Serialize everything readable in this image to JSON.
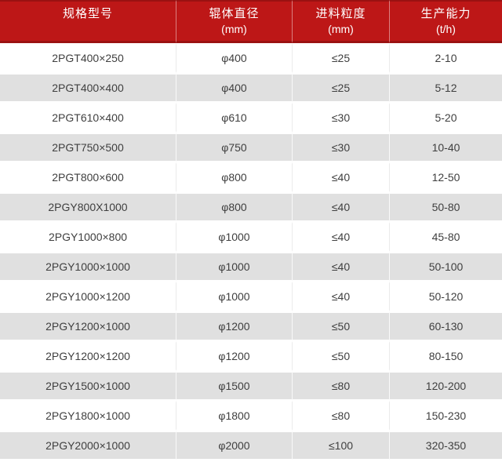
{
  "colors": {
    "header_bg": "#bd1717",
    "header_border": "#9a1111",
    "header_text": "#ffffff",
    "row_bg": "#ffffff",
    "row_alt_bg": "#e0e0e0",
    "body_text": "#3f3f3f",
    "divider": "#ebebeb"
  },
  "table": {
    "columns": [
      {
        "title": "规格型号",
        "unit": ""
      },
      {
        "title": "辊体直径",
        "unit": "(mm)"
      },
      {
        "title": "进料粒度",
        "unit": "(mm)"
      },
      {
        "title": "生产能力",
        "unit": "(t/h)"
      }
    ],
    "rows": [
      [
        "2PGT400×250",
        "φ400",
        "≤25",
        "2-10"
      ],
      [
        "2PGT400×400",
        "φ400",
        "≤25",
        "5-12"
      ],
      [
        "2PGT610×400",
        "φ610",
        "≤30",
        "5-20"
      ],
      [
        "2PGT750×500",
        "φ750",
        "≤30",
        "10-40"
      ],
      [
        "2PGT800×600",
        "φ800",
        "≤40",
        "12-50"
      ],
      [
        "2PGY800X1000",
        "φ800",
        "≤40",
        "50-80"
      ],
      [
        "2PGY1000×800",
        "φ1000",
        "≤40",
        "45-80"
      ],
      [
        "2PGY1000×1000",
        "φ1000",
        "≤40",
        "50-100"
      ],
      [
        "2PGY1000×1200",
        "φ1000",
        "≤40",
        "50-120"
      ],
      [
        "2PGY1200×1000",
        "φ1200",
        "≤50",
        "60-130"
      ],
      [
        "2PGY1200×1200",
        "φ1200",
        "≤50",
        "80-150"
      ],
      [
        "2PGY1500×1000",
        "φ1500",
        "≤80",
        "120-200"
      ],
      [
        "2PGY1800×1000",
        "φ1800",
        "≤80",
        "150-230"
      ],
      [
        "2PGY2000×1000",
        "φ2000",
        "≤100",
        "320-350"
      ]
    ]
  }
}
